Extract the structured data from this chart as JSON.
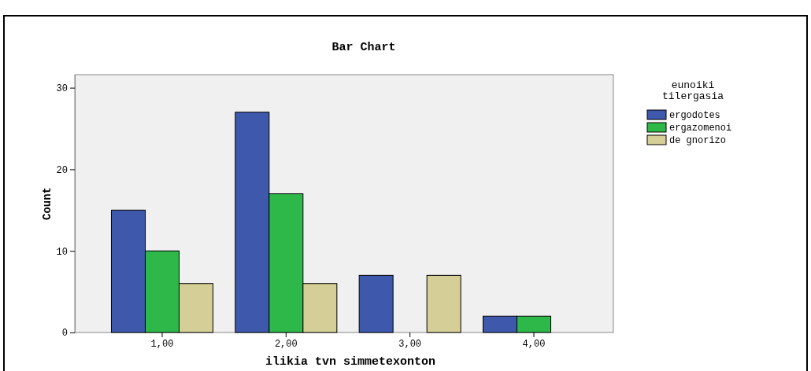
{
  "chart_data": {
    "type": "bar",
    "title": "Bar Chart",
    "xlabel": "ilikia tvn simmetexonton",
    "ylabel": "Count",
    "legend_title": "eunoiki tilergasia",
    "categories": [
      "1,00",
      "2,00",
      "3,00",
      "4,00"
    ],
    "series": [
      {
        "name": "ergodotes",
        "color": "#3e58ac",
        "values": [
          15,
          27,
          7,
          2
        ]
      },
      {
        "name": "ergazomenoi",
        "color": "#2eb84a",
        "values": [
          10,
          17,
          null,
          2
        ]
      },
      {
        "name": "de gnorizo",
        "color": "#d5cf97",
        "values": [
          6,
          6,
          7,
          null
        ]
      }
    ],
    "ylim": [
      0,
      31.6
    ],
    "yticks": [
      0,
      10,
      20,
      30
    ],
    "legend": "right",
    "grid": false
  }
}
